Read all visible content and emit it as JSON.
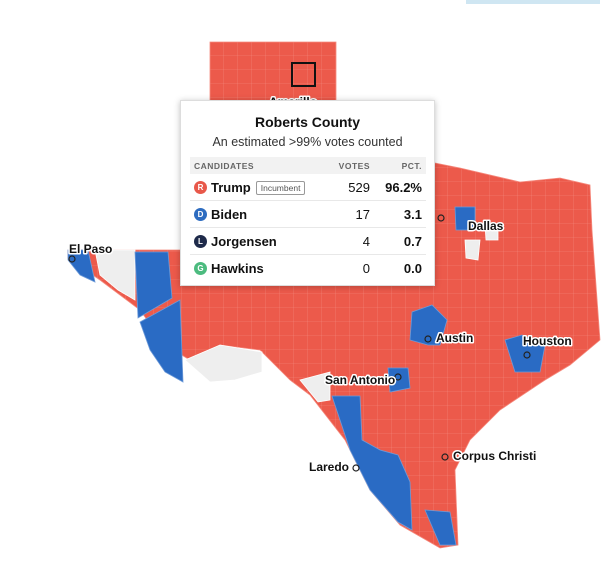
{
  "map": {
    "cities": [
      "Amarillo",
      "Dallas",
      "El Paso",
      "Austin",
      "Houston",
      "San Antonio",
      "Laredo",
      "Corpus Christi"
    ]
  },
  "tooltip": {
    "title": "Roberts County",
    "subtitle": "An estimated >99% votes counted",
    "columns": [
      "CANDIDATES",
      "VOTES",
      "PCT."
    ],
    "rows": [
      {
        "initial": "R",
        "name": "Trump",
        "badge": "Incumbent",
        "votes": 529,
        "pct": "96.2%"
      },
      {
        "initial": "D",
        "name": "Biden",
        "votes": 17,
        "pct": "3.1"
      },
      {
        "initial": "L",
        "name": "Jorgensen",
        "votes": 4,
        "pct": "0.7"
      },
      {
        "initial": "G",
        "name": "Hawkins",
        "votes": 0,
        "pct": "0.0"
      }
    ]
  }
}
